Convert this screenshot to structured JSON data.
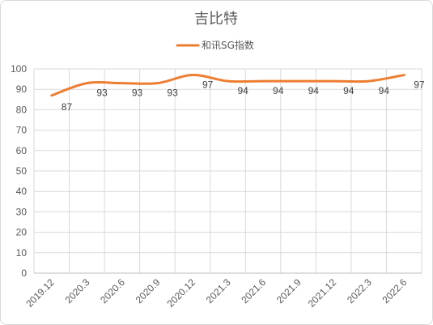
{
  "chart_data": {
    "type": "line",
    "title": "吉比特",
    "categories": [
      "2019.12",
      "2020.3",
      "2020.6",
      "2020.9",
      "2020.12",
      "2021.3",
      "2021.6",
      "2021.9",
      "2021.12",
      "2022.3",
      "2022.6"
    ],
    "series": [
      {
        "name": "和讯SG指数",
        "values": [
          87,
          93,
          93,
          93,
          97,
          94,
          94,
          94,
          94,
          94,
          97
        ],
        "color": "#ED7D31"
      }
    ],
    "ylim": [
      0,
      100
    ],
    "yticks": [
      0,
      10,
      20,
      30,
      40,
      50,
      60,
      70,
      80,
      90,
      100
    ],
    "grid": true,
    "legend_position": "top",
    "smooth": true,
    "data_labels": true,
    "xlabel": "",
    "ylabel": ""
  }
}
